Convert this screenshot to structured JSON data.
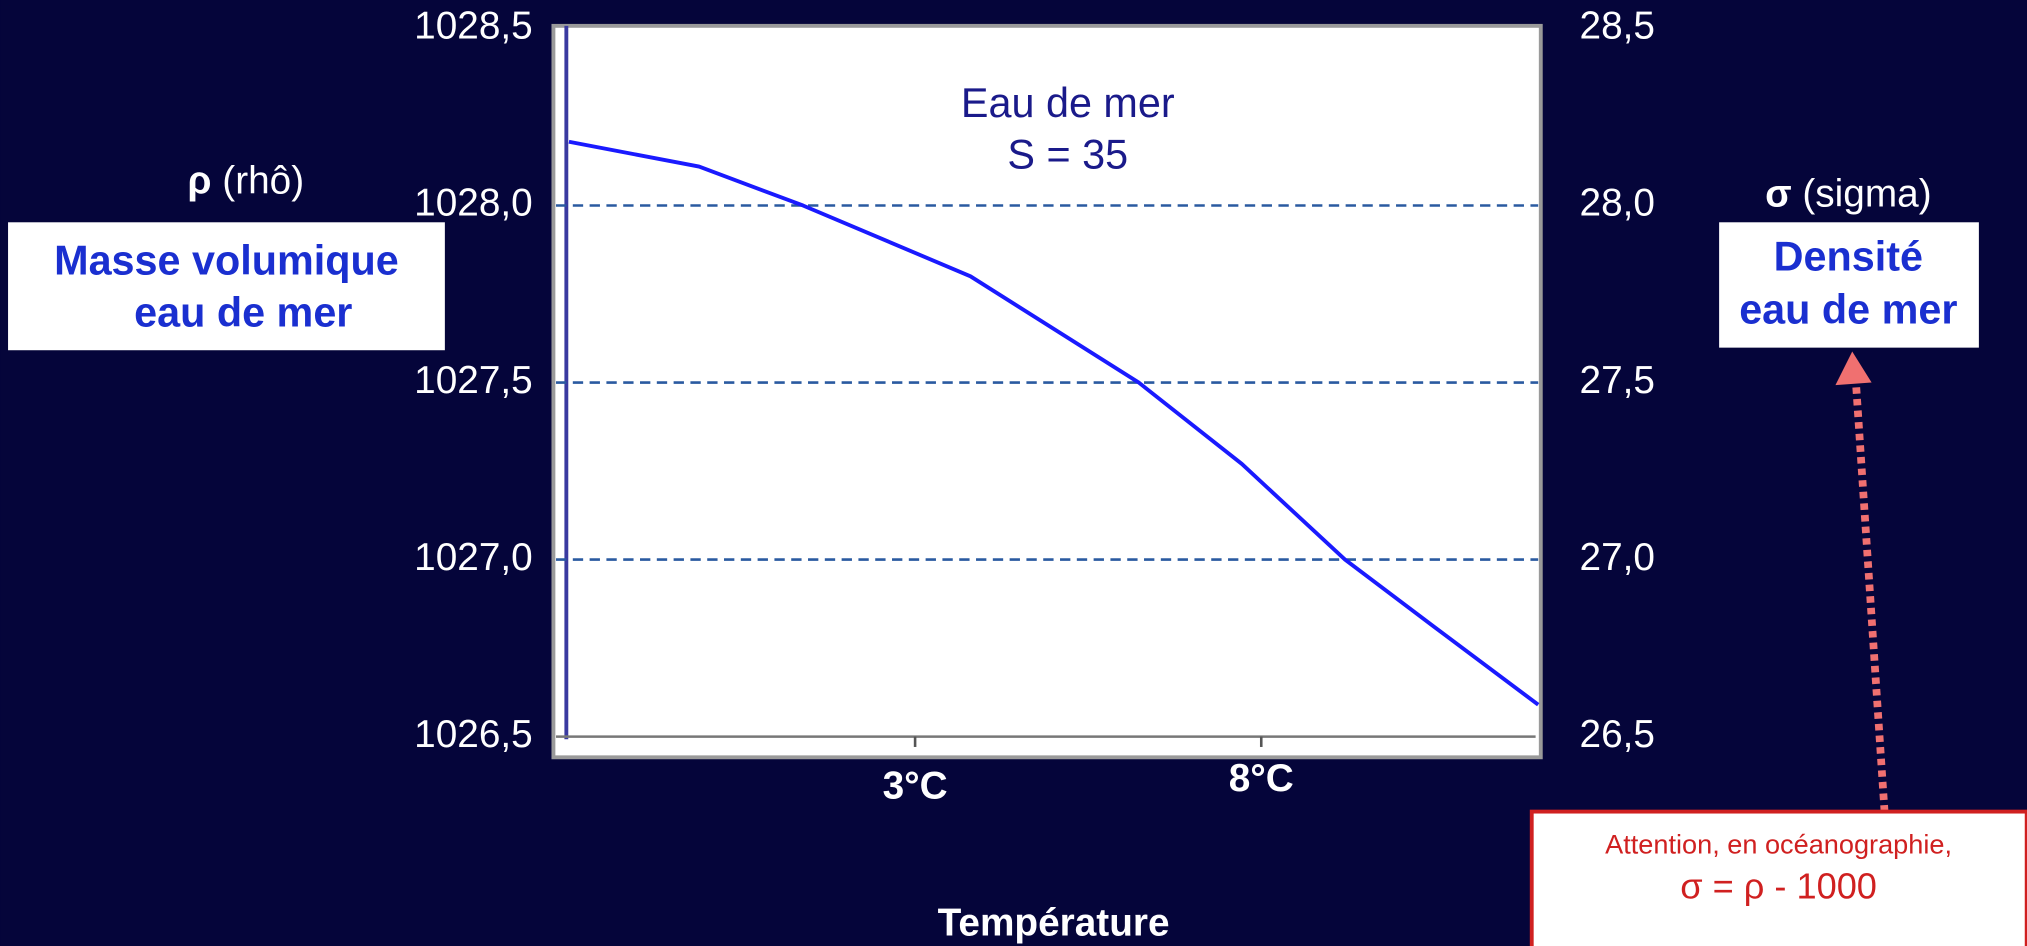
{
  "chart_data": {
    "type": "line",
    "annotation_lines": [
      "Eau de mer",
      "S = 35"
    ],
    "ylabel_symbol": "ρ",
    "ylabel": "(rhô)",
    "ylabel_box": [
      "Masse volumique",
      "eau de mer"
    ],
    "y2label_symbol": "σ",
    "y2label": "(sigma)",
    "y2label_box": [
      "Densité",
      "eau de mer"
    ],
    "xlabel": "Température",
    "note": [
      "Attention, en océanographie,",
      "σ = ρ - 1000"
    ],
    "x": [
      -2,
      -0.12,
      1.38,
      3.8,
      6.23,
      7.72,
      9.21,
      10.5,
      12
    ],
    "values": [
      1028.18,
      1028.11,
      1028.0,
      1027.8,
      1027.5,
      1027.27,
      1027.0,
      1026.81,
      1026.59
    ],
    "color": "#1a1aff",
    "xlim": [
      -2,
      12
    ],
    "xticks": [
      {
        "value": 3,
        "label": "3°C"
      },
      {
        "value": 8,
        "label": "8°C"
      }
    ],
    "ylim": [
      1026.5,
      1028.5
    ],
    "yticks": [
      {
        "value": 1026.5,
        "label": "1026,5"
      },
      {
        "value": 1027,
        "label": "1027,0"
      },
      {
        "value": 1027.5,
        "label": "1027,5"
      },
      {
        "value": 1028,
        "label": "1028,0"
      },
      {
        "value": 1028.5,
        "label": "1028,5"
      }
    ],
    "y2lim": [
      26.5,
      28.5
    ],
    "y2ticks": [
      {
        "value": 26.5,
        "label": "26,5"
      },
      {
        "value": 27,
        "label": "27,0"
      },
      {
        "value": 27.5,
        "label": "27,5"
      },
      {
        "value": 28,
        "label": "28,0"
      },
      {
        "value": 28.5,
        "label": "28,5"
      }
    ],
    "grid": true
  }
}
